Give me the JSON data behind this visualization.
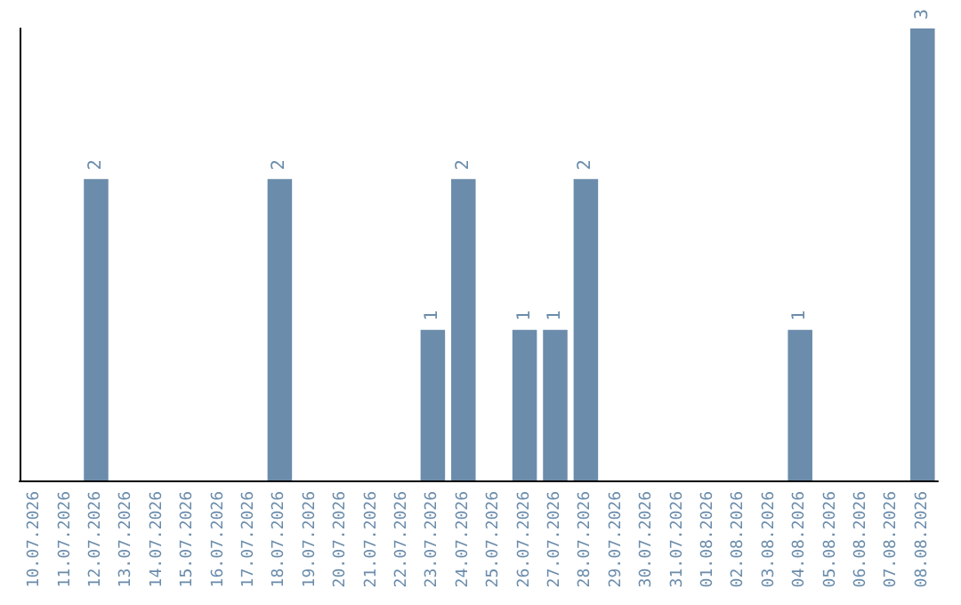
{
  "chart_data": {
    "type": "bar",
    "categories": [
      "10.07.2026",
      "11.07.2026",
      "12.07.2026",
      "13.07.2026",
      "14.07.2026",
      "15.07.2026",
      "16.07.2026",
      "17.07.2026",
      "18.07.2026",
      "19.07.2026",
      "20.07.2026",
      "21.07.2026",
      "22.07.2026",
      "23.07.2026",
      "24.07.2026",
      "25.07.2026",
      "26.07.2026",
      "27.07.2026",
      "28.07.2026",
      "29.07.2026",
      "30.07.2026",
      "31.07.2026",
      "01.08.2026",
      "02.08.2026",
      "03.08.2026",
      "04.08.2026",
      "05.08.2026",
      "06.08.2026",
      "07.08.2026",
      "08.08.2026"
    ],
    "values": [
      0,
      0,
      2,
      0,
      0,
      0,
      0,
      0,
      2,
      0,
      0,
      0,
      0,
      1,
      2,
      0,
      1,
      1,
      2,
      0,
      0,
      0,
      0,
      0,
      0,
      1,
      0,
      0,
      0,
      3
    ],
    "value_labels": [
      null,
      null,
      "2",
      null,
      null,
      null,
      null,
      null,
      "2",
      null,
      null,
      null,
      null,
      "1",
      "2",
      null,
      "1",
      "1",
      "2",
      null,
      null,
      null,
      null,
      null,
      null,
      "1",
      null,
      null,
      null,
      "3"
    ],
    "color": "#6b8cab",
    "grid": false
  }
}
